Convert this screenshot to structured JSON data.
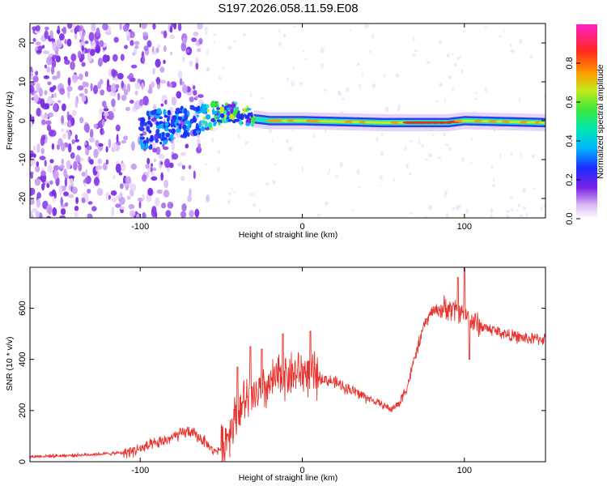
{
  "title": "S197.2026.058.11.59.E08",
  "colors": {
    "snr_line": "#e8322d",
    "track_core": "#e53024",
    "background": "#ffffff"
  },
  "chart_data": [
    {
      "type": "heatmap",
      "description_of_data": "Spectrogram of frequency offset versus height along straight line",
      "xlabel": "Height of straight line (km)",
      "ylabel": "Frequency (Hz)",
      "xlim": [
        -168,
        150
      ],
      "ylim": [
        -25,
        25
      ],
      "xticks": [
        -100,
        0,
        100
      ],
      "yticks": [
        -20,
        -10,
        0,
        10,
        20
      ],
      "track": [
        {
          "x": -100,
          "y": -3
        },
        {
          "x": -90,
          "y": -2
        },
        {
          "x": -80,
          "y": -1
        },
        {
          "x": -70,
          "y": 0
        },
        {
          "x": -60,
          "y": 1
        },
        {
          "x": -50,
          "y": 2
        },
        {
          "x": -40,
          "y": 2
        },
        {
          "x": -30,
          "y": 0.5
        },
        {
          "x": -20,
          "y": 0
        },
        {
          "x": 0,
          "y": 0
        },
        {
          "x": 50,
          "y": -0.5
        },
        {
          "x": 90,
          "y": -0.5
        },
        {
          "x": 100,
          "y": 0
        },
        {
          "x": 150,
          "y": -0.5
        }
      ]
    },
    {
      "type": "colorbar",
      "label": "Normalized spectral amplitude",
      "range": [
        0,
        1
      ],
      "ticks": [
        0.0,
        0.2,
        0.4,
        0.6,
        0.8
      ],
      "tick_labels": [
        "0.0",
        "0.2",
        "0.4",
        "0.6",
        "0.8"
      ]
    },
    {
      "type": "line",
      "xlabel": "Height of straight line (km)",
      "ylabel": "SNR (10 * v/v)",
      "xlim": [
        -168,
        150
      ],
      "ylim": [
        0,
        760
      ],
      "xticks": [
        -100,
        0,
        100
      ],
      "yticks": [
        0,
        200,
        400,
        600
      ],
      "series": [
        {
          "name": "SNR",
          "x": [
            -168,
            -140,
            -110,
            -100,
            -90,
            -80,
            -70,
            -60,
            -55,
            -50,
            -45,
            -40,
            -35,
            -30,
            -20,
            -15,
            -10,
            -5,
            0,
            5,
            10,
            20,
            30,
            40,
            50,
            55,
            60,
            65,
            70,
            75,
            80,
            90,
            95,
            100,
            105,
            110,
            120,
            130,
            140,
            150
          ],
          "values": [
            20,
            25,
            35,
            50,
            70,
            95,
            120,
            80,
            40,
            50,
            120,
            200,
            240,
            250,
            300,
            330,
            340,
            345,
            350,
            345,
            330,
            310,
            280,
            250,
            220,
            205,
            230,
            300,
            420,
            530,
            590,
            600,
            590,
            580,
            550,
            530,
            510,
            490,
            480,
            480
          ]
        }
      ],
      "spikes": [
        {
          "x": -40,
          "y": 370
        },
        {
          "x": -32,
          "y": 450
        },
        {
          "x": -25,
          "y": 440
        },
        {
          "x": -12,
          "y": 500
        },
        {
          "x": 5,
          "y": 510
        },
        {
          "x": 96,
          "y": 720
        },
        {
          "x": 100,
          "y": 760
        },
        {
          "x": 103,
          "y": 400
        }
      ]
    }
  ]
}
